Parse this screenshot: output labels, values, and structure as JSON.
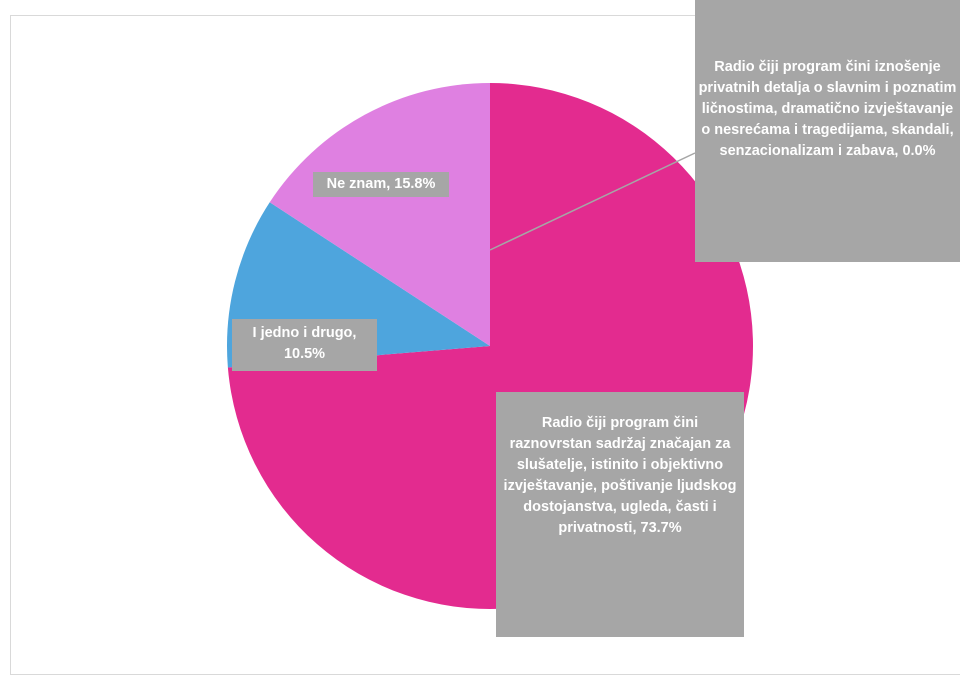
{
  "chart_data": {
    "type": "pie",
    "title": "",
    "slices": [
      {
        "label": "Radio čiji program čini raznovrstan sadržaj značajan za slušatelje, istinito i objektivno izvještavanje, poštivanje ljudskog dostojanstva, ugleda, časti i privatnosti",
        "value": 73.7,
        "display": "73.7%",
        "color": "#e32b8f"
      },
      {
        "label": "I jedno i drugo",
        "value": 10.5,
        "display": "10.5%",
        "color": "#4ea5dd"
      },
      {
        "label": "Ne znam",
        "value": 15.8,
        "display": "15.8%",
        "color": "#df80e1"
      },
      {
        "label": "Radio čiji program čini iznošenje privatnih detalja o slavnim i poznatim ličnostima, dramatično izvještavanje o nesrećama i tragedijama, skandali, senzacionalizam i zabava",
        "value": 0.0,
        "display": "0.0%",
        "color": "#e32b8f"
      }
    ],
    "legend": "none",
    "data_labels": [
      "Radio čiji program čini raznovrstan sadržaj značajan za slušatelje, istinito i objektivno izvještavanje, poštivanje ljudskog dostojanstva, ugleda, časti i privatnosti, 73.7%",
      "I jedno i drugo, 10.5%",
      "Ne znam, 15.8%",
      "Radio čiji program čini iznošenje privatnih detalja o slavnim i poznatim ličnostima, dramatično izvještavanje o nesrećama i tragedijama, skandali, senzacionalizam i zabava, 0.0%"
    ]
  },
  "colors": {
    "label_background": "#a6a6a6",
    "label_text": "#ffffff",
    "leader_line": "#a6a6a6"
  }
}
